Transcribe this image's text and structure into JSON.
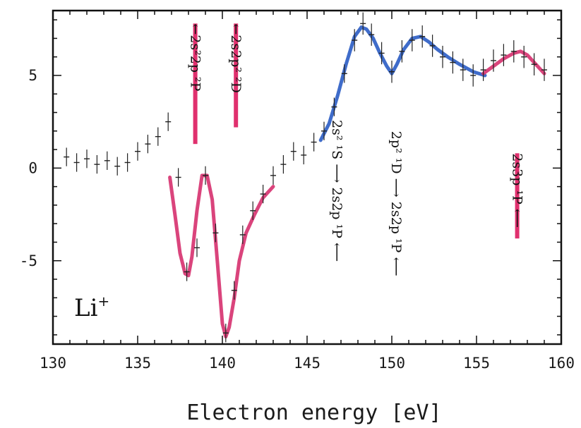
{
  "chart_data": {
    "type": "scatter",
    "title": "",
    "xlabel": "Electron energy [eV]",
    "ylabel": "",
    "xlim": [
      130,
      160
    ],
    "ylim": [
      -9.5,
      8.5
    ],
    "x_ticks": [
      130,
      135,
      140,
      145,
      150,
      155,
      160
    ],
    "y_ticks": [
      -5,
      0,
      5
    ],
    "ion_label": "Li",
    "ion_charge": "+",
    "grid": false,
    "colors": {
      "data": "#222222",
      "fit_magenta": "#d6306e",
      "fit_blue": "#2a5cc4",
      "bar_magenta": "#e0306e"
    },
    "measured": {
      "x": [
        130.8,
        131.4,
        132.0,
        132.6,
        133.2,
        133.8,
        134.4,
        135.0,
        135.6,
        136.2,
        136.8,
        137.4,
        137.9,
        138.5,
        139.0,
        139.6,
        140.2,
        140.7,
        141.2,
        141.8,
        142.4,
        143.0,
        143.6,
        144.2,
        144.8,
        145.4,
        146.0,
        146.6,
        147.2,
        147.8,
        148.3,
        148.8,
        149.4,
        150.0,
        150.6,
        151.2,
        151.8,
        152.4,
        153.0,
        153.6,
        154.2,
        154.8,
        155.4,
        156.0,
        156.6,
        157.2,
        157.8,
        158.4,
        159.0
      ],
      "y": [
        0.6,
        0.3,
        0.5,
        0.2,
        0.4,
        0.1,
        0.3,
        0.9,
        1.3,
        1.7,
        2.5,
        -0.5,
        -5.6,
        -4.3,
        -0.4,
        -3.5,
        -8.9,
        -6.6,
        -3.6,
        -2.3,
        -1.4,
        -0.4,
        0.2,
        0.9,
        0.7,
        1.4,
        2.0,
        3.3,
        5.1,
        6.9,
        7.8,
        7.2,
        6.2,
        5.2,
        6.3,
        6.9,
        7.1,
        6.6,
        6.0,
        5.7,
        5.3,
        5.0,
        5.3,
        5.8,
        6.1,
        6.3,
        6.0,
        5.6,
        5.3
      ],
      "err": [
        0.5,
        0.5,
        0.5,
        0.5,
        0.5,
        0.5,
        0.5,
        0.5,
        0.5,
        0.5,
        0.5,
        0.5,
        0.5,
        0.5,
        0.5,
        0.5,
        0.5,
        0.5,
        0.5,
        0.5,
        0.5,
        0.5,
        0.5,
        0.5,
        0.5,
        0.5,
        0.5,
        0.5,
        0.5,
        0.6,
        0.6,
        0.6,
        0.6,
        0.6,
        0.6,
        0.6,
        0.6,
        0.6,
        0.6,
        0.6,
        0.6,
        0.6,
        0.6,
        0.6,
        0.6,
        0.6,
        0.6,
        0.6,
        0.6
      ]
    },
    "fits": [
      {
        "color": "magenta",
        "x": [
          136.9,
          137.2,
          137.5,
          137.8,
          138.0,
          138.2,
          138.5,
          138.8,
          139.1,
          139.4,
          139.7,
          140.0,
          140.2,
          140.4,
          140.7,
          141.0,
          141.4,
          141.9,
          142.4,
          143.0
        ],
        "y": [
          -0.5,
          -2.5,
          -4.6,
          -5.7,
          -5.8,
          -4.8,
          -2.3,
          -0.4,
          -0.4,
          -1.7,
          -5.0,
          -8.4,
          -9.1,
          -8.6,
          -7.0,
          -5.0,
          -3.5,
          -2.5,
          -1.6,
          -1.0
        ]
      },
      {
        "color": "blue",
        "x": [
          145.8,
          146.3,
          146.8,
          147.3,
          147.8,
          148.2,
          148.5,
          148.9,
          149.3,
          149.7,
          150.0,
          150.3,
          150.7,
          151.2,
          151.7,
          152.2,
          152.7,
          153.3,
          154.0,
          154.8,
          155.5
        ],
        "y": [
          1.5,
          2.4,
          3.9,
          5.6,
          7.1,
          7.6,
          7.5,
          7.0,
          6.2,
          5.5,
          5.1,
          5.6,
          6.4,
          7.0,
          7.1,
          6.8,
          6.4,
          6.0,
          5.6,
          5.2,
          5.0
        ]
      },
      {
        "color": "magenta",
        "x": [
          155.4,
          156.0,
          156.6,
          157.2,
          157.6,
          158.0,
          158.5,
          159.0
        ],
        "y": [
          5.1,
          5.5,
          5.9,
          6.2,
          6.3,
          6.1,
          5.6,
          5.1
        ]
      }
    ],
    "resonances": [
      {
        "energy": 138.4,
        "label": "←2s²2p ²P",
        "marker": "bar"
      },
      {
        "energy": 140.8,
        "label": "←2s2p² ²D",
        "marker": "bar"
      },
      {
        "energy": 146.5,
        "label": "2s² ¹S ⟶ 2s2p ¹P ⟵",
        "marker": "none"
      },
      {
        "energy": 150.0,
        "label": "2p² ¹D ⟶ 2s2p ¹P ⟵",
        "marker": "none"
      },
      {
        "energy": 157.4,
        "label": "2s3p ¹P ⟵",
        "marker": "bar"
      }
    ]
  }
}
